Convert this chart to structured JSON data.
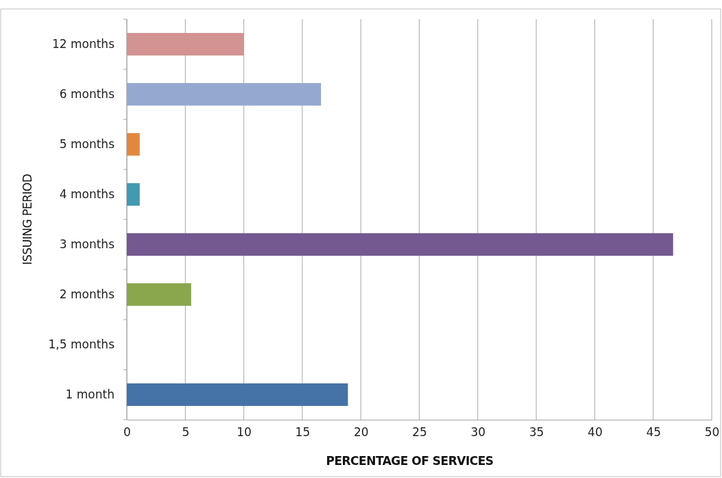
{
  "chart_data": {
    "type": "bar",
    "orientation": "horizontal",
    "xlabel": "PERCENTAGE OF SERVICES",
    "ylabel": "ISSUING PERIOD",
    "categories": [
      "12 months",
      "6 months",
      "5 months",
      "4 months",
      "3 months",
      "2 months",
      "1,5 months",
      "1 month"
    ],
    "values": [
      10.0,
      16.6,
      1.1,
      1.1,
      46.7,
      5.5,
      0,
      18.9
    ],
    "colors": [
      "#d29392",
      "#95a9d0",
      "#e0883f",
      "#4299b0",
      "#735990",
      "#8aa74e",
      "#4572a7",
      "#4572a7"
    ],
    "xlim": [
      0,
      50
    ],
    "xticks": [
      0,
      5,
      10,
      15,
      20,
      25,
      30,
      35,
      40,
      45,
      50
    ],
    "grid": "x"
  }
}
